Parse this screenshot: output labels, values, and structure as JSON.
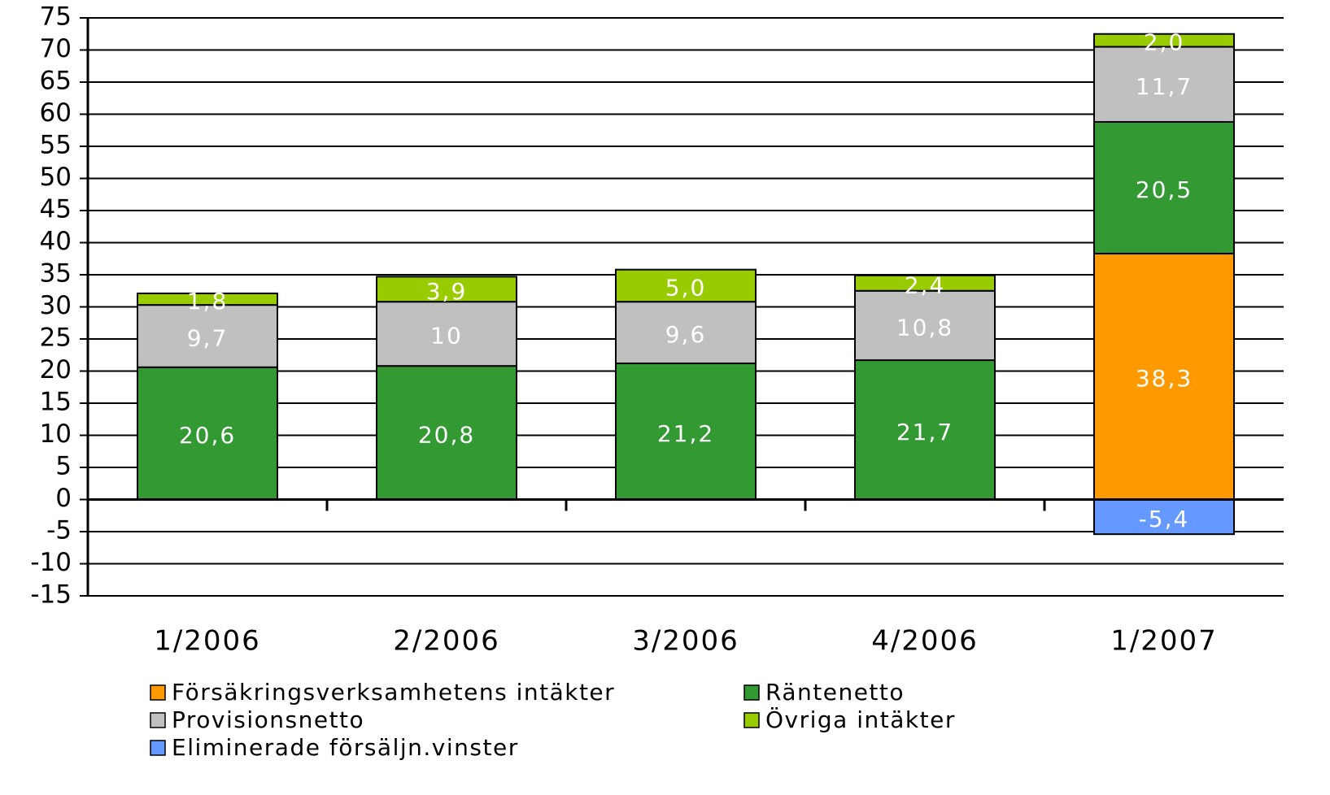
{
  "chart_data": {
    "type": "stacked_bar",
    "categories": [
      "1/2006",
      "2/2006",
      "3/2006",
      "4/2006",
      "1/2007"
    ],
    "series": [
      {
        "name": "Försäkringsverksamhetens intäkter",
        "color": "#ff9900",
        "values": [
          null,
          null,
          null,
          null,
          38.3
        ],
        "value_labels": [
          null,
          null,
          null,
          null,
          "38,3"
        ]
      },
      {
        "name": "Räntenetto",
        "color": "#339933",
        "values": [
          20.6,
          20.8,
          21.2,
          21.7,
          20.5
        ],
        "value_labels": [
          "20,6",
          "20,8",
          "21,2",
          "21,7",
          "20,5"
        ]
      },
      {
        "name": "Provisionsnetto",
        "color": "#c0c0c0",
        "values": [
          9.7,
          10,
          9.6,
          10.8,
          11.7
        ],
        "value_labels": [
          "9,7",
          "10",
          "9,6",
          "10,8",
          "11,7"
        ]
      },
      {
        "name": "Övriga intäkter",
        "color": "#99cc00",
        "values": [
          1.8,
          3.9,
          5.0,
          2.4,
          2.0
        ],
        "value_labels": [
          "1,8",
          "3,9",
          "5,0",
          "2,4",
          "2,0"
        ]
      },
      {
        "name": "Eliminerade försäljn.vinster",
        "color": "#6699ff",
        "values": [
          null,
          null,
          null,
          null,
          -5.4
        ],
        "value_labels": [
          null,
          null,
          null,
          null,
          "-5,4"
        ]
      }
    ],
    "ylim": [
      -15,
      75
    ],
    "yticks": [
      -15,
      -10,
      -5,
      0,
      5,
      10,
      15,
      20,
      25,
      30,
      35,
      40,
      45,
      50,
      55,
      60,
      65,
      70,
      75
    ],
    "grid": true,
    "legend": "bottom"
  }
}
